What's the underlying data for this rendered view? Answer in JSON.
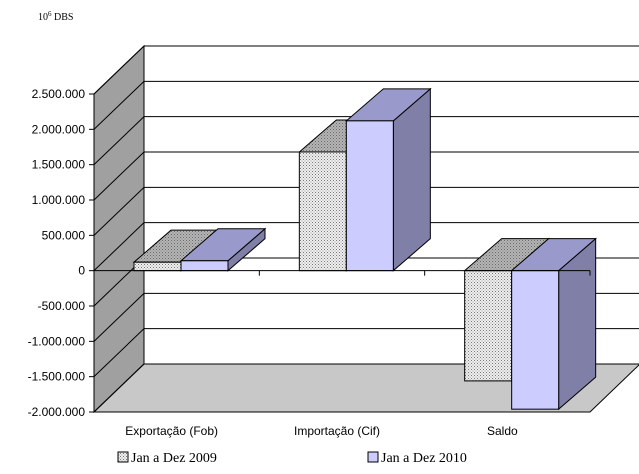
{
  "chart_data": {
    "type": "bar",
    "title": "",
    "unit_label_base": "10",
    "unit_label_exp": "6",
    "unit_label_suffix": " DBS",
    "xlabel": "",
    "ylabel": "",
    "ylim": [
      -2000000,
      2500000
    ],
    "ytick_step": 500000,
    "ytick_labels": [
      "-2.000.000",
      "-1.500.000",
      "-1.000.000",
      "-500.000",
      "0",
      "500.000",
      "1.000.000",
      "1.500.000",
      "2.000.000",
      "2.500.000"
    ],
    "categories": [
      "Exportação (Fob)",
      "Importação (Cif)",
      "Saldo"
    ],
    "series": [
      {
        "name": "Jan a Dez 2009",
        "values": [
          120000,
          1680000,
          -1560000
        ],
        "fill": "#dcdcdc",
        "top": "#a8a8a8",
        "side": "#8a8a8a",
        "pattern": "dots"
      },
      {
        "name": "Jan a Dez 2010",
        "values": [
          140000,
          2120000,
          -1960000
        ],
        "fill": "#ccccff",
        "top": "#9999cc",
        "side": "#7f7fa8",
        "pattern": "solid"
      }
    ],
    "grid": true,
    "legend_position": "bottom",
    "colors": {
      "wall": "#ffffff",
      "floor": "#c8c8c8",
      "left_wall": "#a0a0a0",
      "grid": "#000000"
    }
  }
}
